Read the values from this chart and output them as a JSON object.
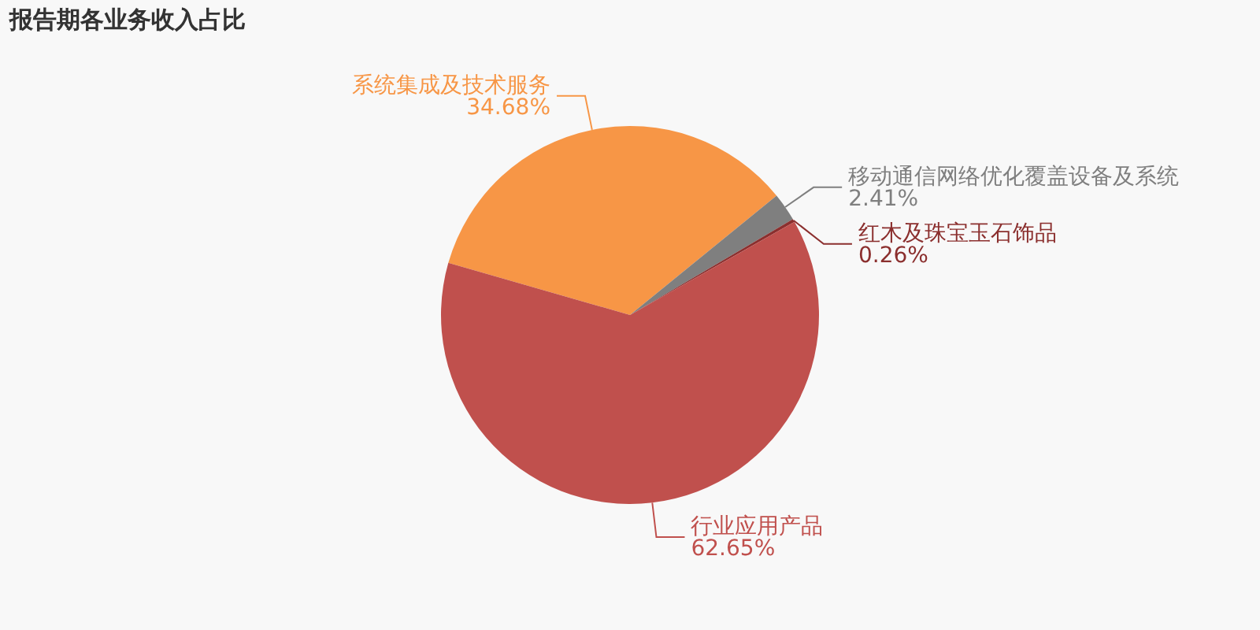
{
  "chart_data": {
    "type": "pie",
    "title": "报告期各业务收入占比",
    "categories": [
      "系统集成及技术服务",
      "移动通信网络优化覆盖设备及系统",
      "红木及珠宝玉石饰品",
      "行业应用产品"
    ],
    "values": [
      34.68,
      2.41,
      0.26,
      62.65
    ],
    "value_labels": [
      "34.68%",
      "2.41%",
      "0.26%",
      "62.65%"
    ],
    "colors": [
      "#f79646",
      "#7f7f7f",
      "#8b2f2e",
      "#c0504d"
    ],
    "legend": false
  }
}
